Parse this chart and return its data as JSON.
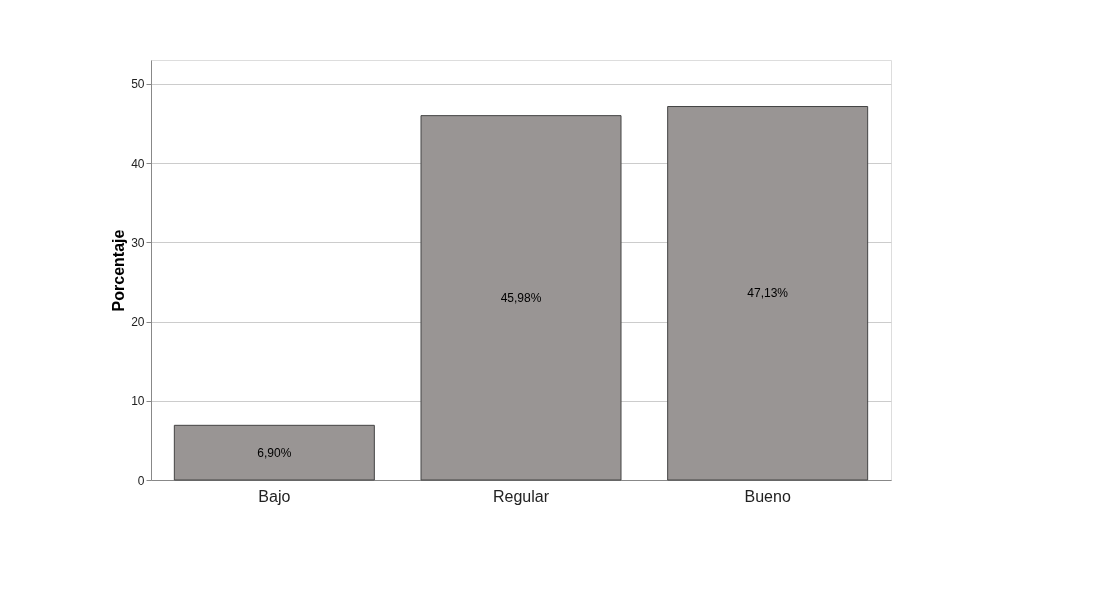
{
  "chart_data": {
    "type": "bar",
    "ylabel": "Porcentaje",
    "categories": [
      "Bajo",
      "Regular",
      "Bueno"
    ],
    "values": [
      6.9,
      45.98,
      47.13
    ],
    "value_labels": [
      "6,90%",
      "45,98%",
      "47,13%"
    ],
    "color": "#999594",
    "ylim": [
      0,
      53
    ],
    "yticks": [
      0,
      10,
      20,
      30,
      40,
      50
    ],
    "grid": "y"
  }
}
